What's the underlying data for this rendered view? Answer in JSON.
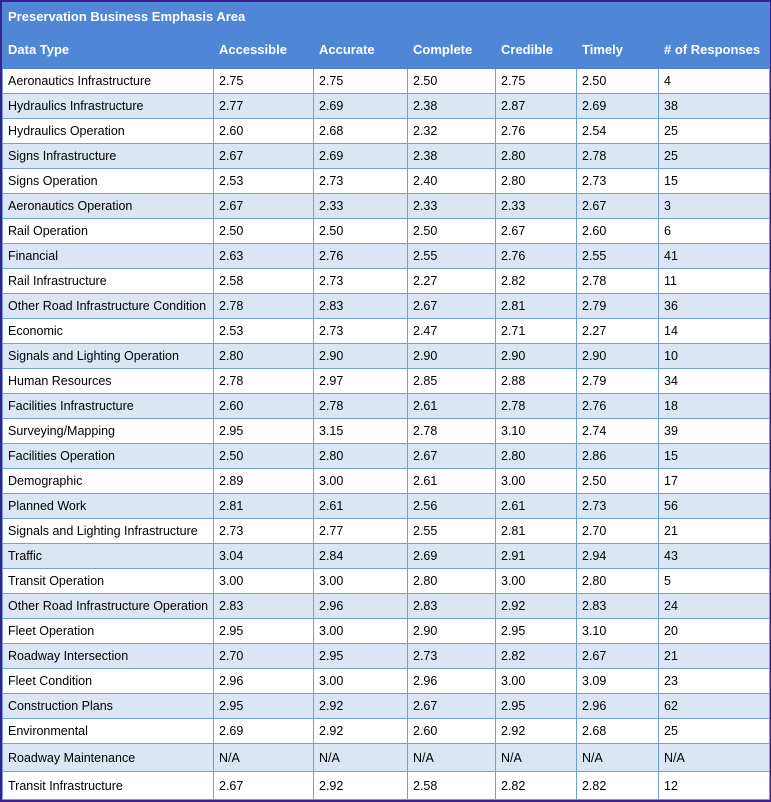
{
  "table": {
    "caption": "Preservation Business Emphasis Area",
    "headers": [
      "Data Type",
      "Accessible",
      "Accurate",
      "Complete",
      "Credible",
      "Timely",
      "# of Responses"
    ],
    "rows": [
      [
        "Aeronautics Infrastructure",
        "2.75",
        "2.75",
        "2.50",
        "2.75",
        "2.50",
        "4"
      ],
      [
        "Hydraulics Infrastructure",
        "2.77",
        "2.69",
        "2.38",
        "2.87",
        "2.69",
        "38"
      ],
      [
        "Hydraulics Operation",
        "2.60",
        "2.68",
        "2.32",
        "2.76",
        "2.54",
        "25"
      ],
      [
        "Signs Infrastructure",
        "2.67",
        "2.69",
        "2.38",
        "2.80",
        "2.78",
        "25"
      ],
      [
        "Signs Operation",
        "2.53",
        "2.73",
        "2.40",
        "2.80",
        "2.73",
        "15"
      ],
      [
        "Aeronautics Operation",
        "2.67",
        "2.33",
        "2.33",
        "2.33",
        "2.67",
        "3"
      ],
      [
        "Rail Operation",
        "2.50",
        "2.50",
        "2.50",
        "2.67",
        "2.60",
        "6"
      ],
      [
        "Financial",
        "2.63",
        "2.76",
        "2.55",
        "2.76",
        "2.55",
        "41"
      ],
      [
        "Rail Infrastructure",
        "2.58",
        "2.73",
        "2.27",
        "2.82",
        "2.78",
        "11"
      ],
      [
        "Other Road Infrastructure Condition",
        "2.78",
        "2.83",
        "2.67",
        "2.81",
        "2.79",
        "36"
      ],
      [
        "Economic",
        "2.53",
        "2.73",
        "2.47",
        "2.71",
        "2.27",
        "14"
      ],
      [
        "Signals and Lighting Operation",
        "2.80",
        "2.90",
        "2.90",
        "2.90",
        "2.90",
        "10"
      ],
      [
        "Human Resources",
        "2.78",
        "2.97",
        "2.85",
        "2.88",
        "2.79",
        "34"
      ],
      [
        "Facilities Infrastructure",
        "2.60",
        "2.78",
        "2.61",
        "2.78",
        "2.76",
        "18"
      ],
      [
        "Surveying/Mapping",
        "2.95",
        "3.15",
        "2.78",
        "3.10",
        "2.74",
        "39"
      ],
      [
        "Facilities Operation",
        "2.50",
        "2.80",
        "2.67",
        "2.80",
        "2.86",
        "15"
      ],
      [
        "Demographic",
        "2.89",
        "3.00",
        "2.61",
        "3.00",
        "2.50",
        "17"
      ],
      [
        "Planned Work",
        "2.81",
        "2.61",
        "2.56",
        "2.61",
        "2.73",
        "56"
      ],
      [
        "Signals and Lighting Infrastructure",
        "2.73",
        "2.77",
        "2.55",
        "2.81",
        "2.70",
        "21"
      ],
      [
        "Traffic",
        "3.04",
        "2.84",
        "2.69",
        "2.91",
        "2.94",
        "43"
      ],
      [
        "Transit Operation",
        "3.00",
        "3.00",
        "2.80",
        "3.00",
        "2.80",
        "5"
      ],
      [
        "Other Road Infrastructure Operation",
        "2.83",
        "2.96",
        "2.83",
        "2.92",
        "2.83",
        "24"
      ],
      [
        "Fleet Operation",
        "2.95",
        "3.00",
        "2.90",
        "2.95",
        "3.10",
        "20"
      ],
      [
        "Roadway Intersection",
        "2.70",
        "2.95",
        "2.73",
        "2.82",
        "2.67",
        "21"
      ],
      [
        "Fleet Condition",
        "2.96",
        "3.00",
        "2.96",
        "3.00",
        "3.09",
        "23"
      ],
      [
        "Construction Plans",
        "2.95",
        "2.92",
        "2.67",
        "2.95",
        "2.96",
        "62"
      ],
      [
        "Environmental",
        "2.69",
        "2.92",
        "2.60",
        "2.92",
        "2.68",
        "25"
      ],
      [
        "Roadway Maintenance",
        "N/A",
        "N/A",
        "N/A",
        "N/A",
        "N/A",
        "N/A"
      ],
      [
        "Transit Infrastructure",
        "2.67",
        "2.92",
        "2.58",
        "2.82",
        "2.82",
        "12"
      ]
    ]
  }
}
